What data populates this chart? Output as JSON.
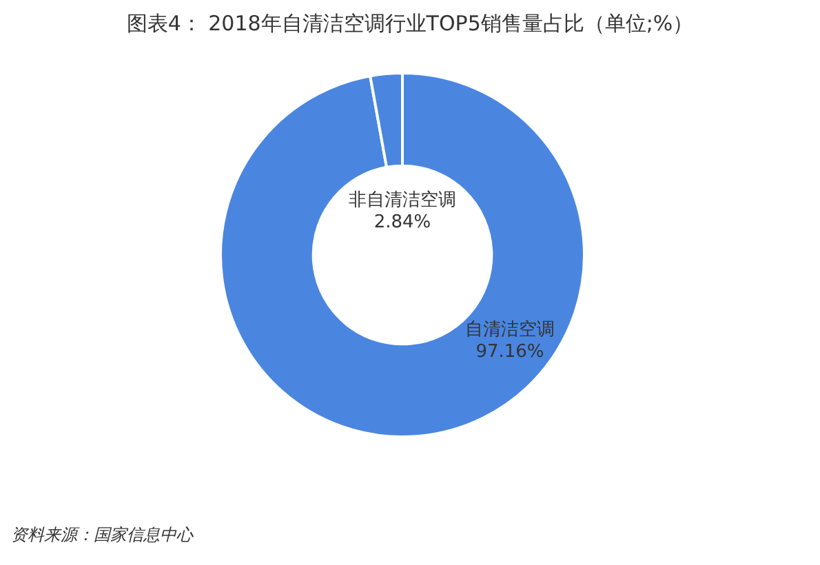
{
  "chart_data": {
    "type": "donut",
    "title": "图表4： 2018年自清洁空调行业TOP5销售量占比（单位;%）",
    "categories": [
      "自清洁空调",
      "非自清洁空调"
    ],
    "values": [
      97.16,
      2.84
    ],
    "value_labels": [
      "97.16%",
      "2.84%"
    ],
    "colors": [
      "#4a86e0",
      "#4a86e0"
    ],
    "legend": false,
    "annotations": [
      "资料来源：国家信息中心"
    ]
  }
}
